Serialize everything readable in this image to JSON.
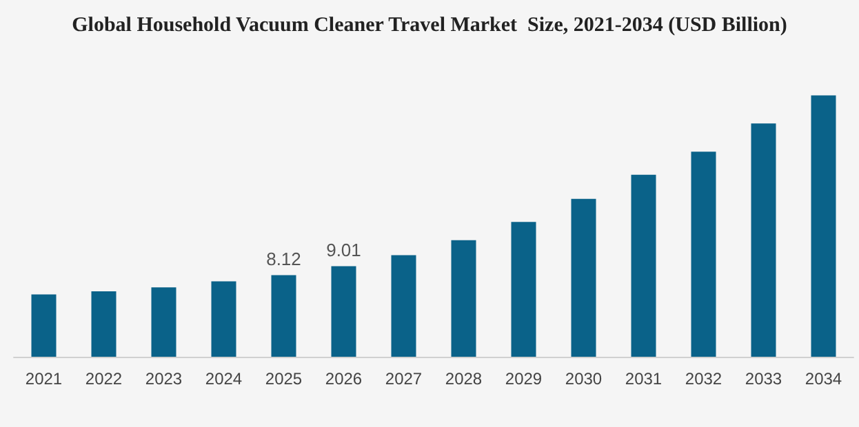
{
  "chart_data": {
    "type": "bar",
    "title": "Global Household Vacuum Cleaner Travel Market  Size, 2021-2034 (USD Billion)",
    "categories": [
      "2021",
      "2022",
      "2023",
      "2024",
      "2025",
      "2026",
      "2027",
      "2028",
      "2029",
      "2030",
      "2031",
      "2032",
      "2033",
      "2034"
    ],
    "values": [
      6.2,
      6.5,
      6.9,
      7.5,
      8.12,
      9.01,
      10.1,
      11.6,
      13.4,
      15.7,
      18.1,
      20.4,
      23.2,
      26.0
    ],
    "value_labels": [
      null,
      null,
      null,
      null,
      "8.12",
      "9.01",
      null,
      null,
      null,
      null,
      null,
      null,
      null,
      null
    ],
    "color": "#0a6289",
    "tick_labels": "x",
    "grid": false
  }
}
